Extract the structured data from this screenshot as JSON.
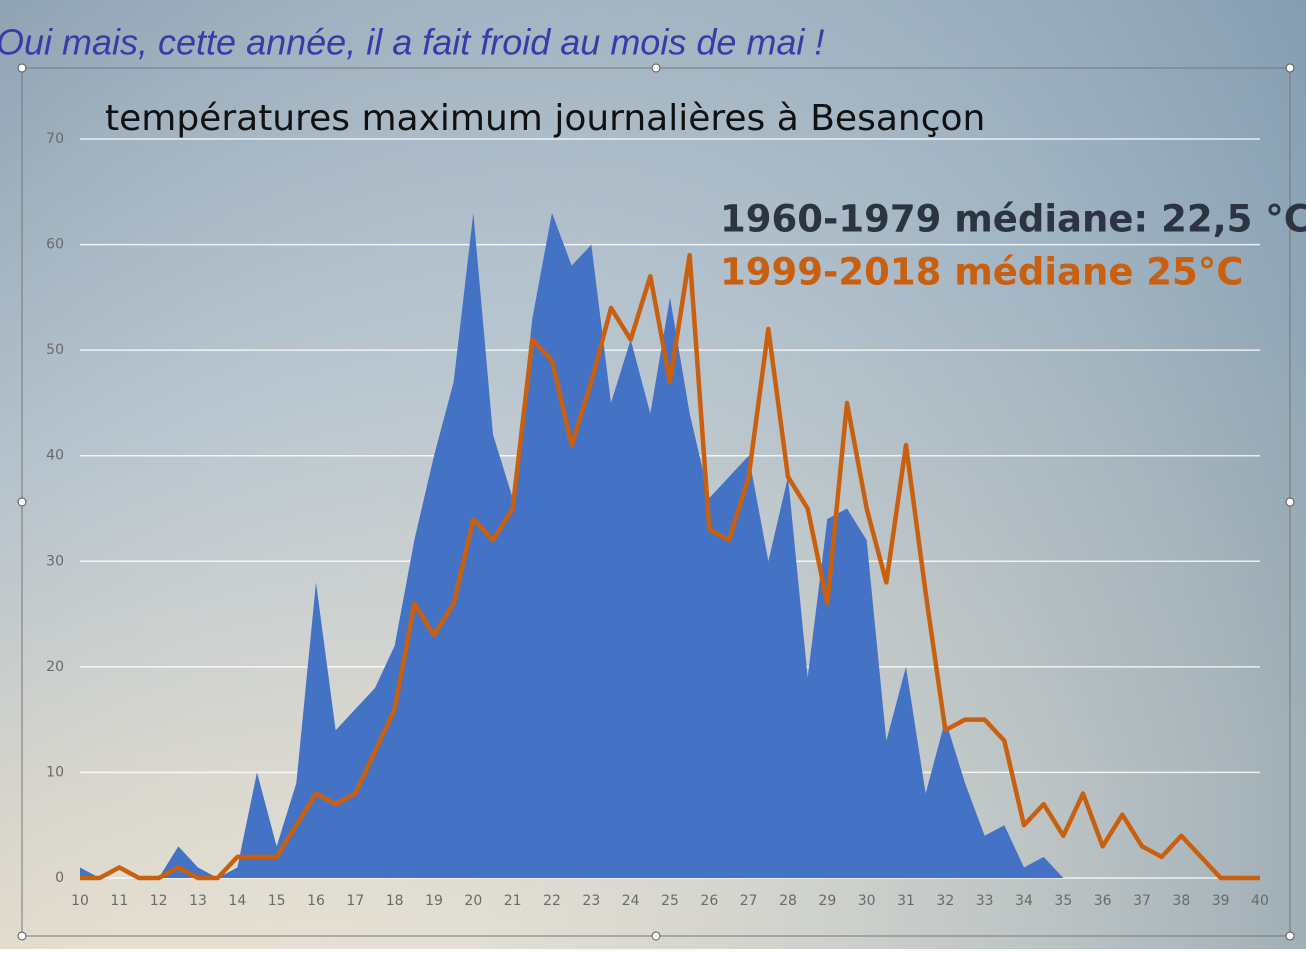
{
  "header": "Oui mais, cette année, il a fait froid au mois de mai  !",
  "chart_data": {
    "type": "area-line",
    "title": "températures maximum journalières à Besançon",
    "x": [
      10,
      10.5,
      11,
      11.5,
      12,
      12.5,
      13,
      13.5,
      14,
      14.5,
      15,
      15.5,
      16,
      16.5,
      17,
      17.5,
      18,
      18.5,
      19,
      19.5,
      20,
      20.5,
      21,
      21.5,
      22,
      22.5,
      23,
      23.5,
      24,
      24.5,
      25,
      25.5,
      26,
      26.5,
      27,
      27.5,
      28,
      28.5,
      29,
      29.5,
      30,
      30.5,
      31,
      31.5,
      32,
      32.5,
      33,
      33.5,
      34,
      34.5,
      35,
      35.5,
      36,
      36.5,
      37,
      37.5,
      38,
      38.5,
      39,
      39.5,
      40
    ],
    "series": [
      {
        "name": "1960-1979  médiane: 22,5 °C",
        "kind": "area",
        "color": "#4472c4",
        "values": [
          1,
          0,
          0,
          0,
          0,
          3,
          1,
          0,
          1,
          10,
          3,
          9,
          28,
          14,
          16,
          18,
          22,
          32,
          40,
          47,
          63,
          42,
          36,
          53,
          63,
          58,
          60,
          45,
          51,
          44,
          55,
          44,
          36,
          38,
          40,
          30,
          38,
          19,
          34,
          35,
          32,
          13,
          20,
          8,
          15,
          9,
          4,
          5,
          1,
          2,
          0,
          0,
          0,
          0,
          0,
          0,
          0,
          0,
          0,
          0,
          0
        ]
      },
      {
        "name": "1999-2018 médiane 25°C",
        "kind": "line",
        "color": "#c8600f",
        "values": [
          0,
          0,
          1,
          0,
          0,
          1,
          0,
          0,
          2,
          2,
          2,
          5,
          8,
          7,
          8,
          12,
          16,
          26,
          23,
          26,
          34,
          32,
          35,
          51,
          49,
          41,
          47,
          54,
          51,
          57,
          47,
          59,
          33,
          32,
          38,
          52,
          38,
          35,
          26,
          45,
          35,
          28,
          41,
          27,
          14,
          15,
          15,
          13,
          5,
          7,
          4,
          8,
          3,
          6,
          3,
          2,
          4,
          2,
          0,
          0,
          0
        ]
      }
    ],
    "xlim": [
      10,
      40
    ],
    "xticks": [
      10,
      11,
      12,
      13,
      14,
      15,
      16,
      17,
      18,
      19,
      20,
      21,
      22,
      23,
      24,
      25,
      26,
      27,
      28,
      29,
      30,
      31,
      32,
      33,
      34,
      35,
      36,
      37,
      38,
      39,
      40
    ],
    "ylim": [
      0,
      70
    ],
    "yticks": [
      0,
      10,
      20,
      30,
      40,
      50,
      60,
      70
    ],
    "grid": true
  }
}
